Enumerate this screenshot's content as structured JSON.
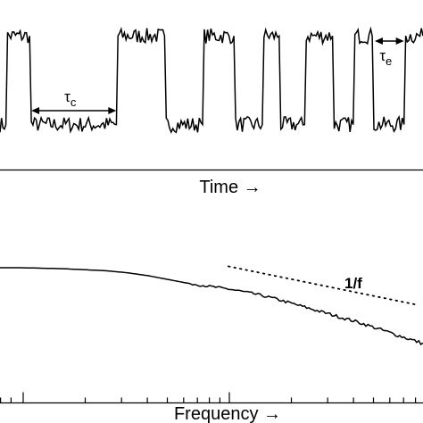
{
  "chart_data": [
    {
      "type": "line",
      "panel": "top",
      "title": "",
      "xlabel": "Time →",
      "ylabel": "",
      "x_range": [
        0,
        1
      ],
      "y_range": [
        0,
        1
      ],
      "grid": false,
      "legend": "none",
      "series": [
        {
          "levels": {
            "high": 0.82,
            "low": 0.14
          },
          "transitions": [
            [
              0.0,
              0.14
            ],
            [
              0.014,
              0.14
            ],
            [
              0.018,
              0.82
            ],
            [
              0.07,
              0.82
            ],
            [
              0.074,
              0.14
            ],
            [
              0.275,
              0.14
            ],
            [
              0.279,
              0.82
            ],
            [
              0.389,
              0.82
            ],
            [
              0.393,
              0.14
            ],
            [
              0.479,
              0.14
            ],
            [
              0.483,
              0.82
            ],
            [
              0.553,
              0.82
            ],
            [
              0.557,
              0.14
            ],
            [
              0.62,
              0.14
            ],
            [
              0.624,
              0.82
            ],
            [
              0.66,
              0.82
            ],
            [
              0.664,
              0.14
            ],
            [
              0.72,
              0.14
            ],
            [
              0.724,
              0.82
            ],
            [
              0.786,
              0.82
            ],
            [
              0.79,
              0.14
            ],
            [
              0.835,
              0.14
            ],
            [
              0.839,
              0.82
            ],
            [
              0.88,
              0.82
            ],
            [
              0.884,
              0.14
            ],
            [
              0.955,
              0.14
            ],
            [
              0.959,
              0.82
            ],
            [
              1.0,
              0.82
            ]
          ],
          "noise_amplitude": 0.06
        }
      ],
      "annotations": [
        {
          "symbol": "τ",
          "subscript": "c",
          "span": [
            0.074,
            0.275
          ]
        },
        {
          "symbol": "τ",
          "subscript": "e",
          "span": [
            0.886,
            0.955
          ]
        }
      ]
    },
    {
      "type": "line",
      "panel": "bottom",
      "title": "",
      "xlabel": "Frequency →",
      "ylabel": "",
      "x_range": [
        0,
        1
      ],
      "y_range": [
        0,
        1
      ],
      "xscale": "log",
      "grid": false,
      "legend": "none",
      "series": [
        {
          "x": [
            0.0,
            0.05,
            0.1,
            0.15,
            0.2,
            0.25,
            0.3,
            0.35,
            0.4,
            0.45,
            0.5,
            0.55,
            0.6,
            0.65,
            0.7,
            0.75,
            0.8,
            0.85,
            0.9,
            0.95,
            1.0
          ],
          "y": [
            0.96,
            0.96,
            0.955,
            0.95,
            0.94,
            0.93,
            0.91,
            0.88,
            0.84,
            0.8,
            0.77,
            0.74,
            0.7,
            0.65,
            0.59,
            0.53,
            0.47,
            0.41,
            0.34,
            0.27,
            0.2
          ]
        }
      ],
      "reference_line": {
        "label": "1/f",
        "x": [
          0.54,
          0.98
        ],
        "y": [
          0.92,
          0.54
        ],
        "style": "dotted"
      }
    }
  ]
}
